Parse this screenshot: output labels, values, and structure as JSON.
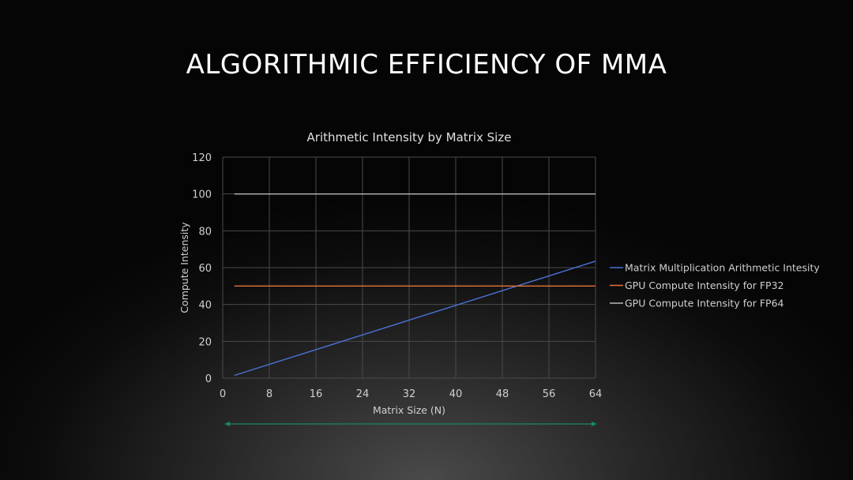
{
  "slide": {
    "title": "ALGORITHMIC EFFICIENCY OF MMA"
  },
  "colors": {
    "background": "#0c0c0c",
    "grid": "#4a4a4a",
    "arrow": "#1a8a5a"
  },
  "chart_data": {
    "type": "line",
    "title": "Arithmetic Intensity by Matrix Size",
    "xlabel": "Matrix Size (N)",
    "ylabel": "Compute Intensity",
    "xlim": [
      0,
      64
    ],
    "ylim": [
      0,
      120
    ],
    "x_ticks": [
      0,
      8,
      16,
      24,
      32,
      40,
      48,
      56,
      64
    ],
    "y_ticks": [
      0,
      20,
      40,
      60,
      80,
      100,
      120
    ],
    "grid": true,
    "legend_position": "right",
    "series": [
      {
        "name": "Matrix Multiplication Arithmetic Intesity",
        "color": "#4a72d6",
        "x": [
          2,
          64
        ],
        "y": [
          1.5,
          63.5
        ]
      },
      {
        "name": "GPU Compute Intensity for FP32",
        "color": "#e8703a",
        "x": [
          2,
          64
        ],
        "y": [
          50,
          50
        ]
      },
      {
        "name": "GPU Compute Intensity for FP64",
        "color": "#b8b8b8",
        "x": [
          2,
          64
        ],
        "y": [
          100,
          100
        ]
      }
    ]
  }
}
